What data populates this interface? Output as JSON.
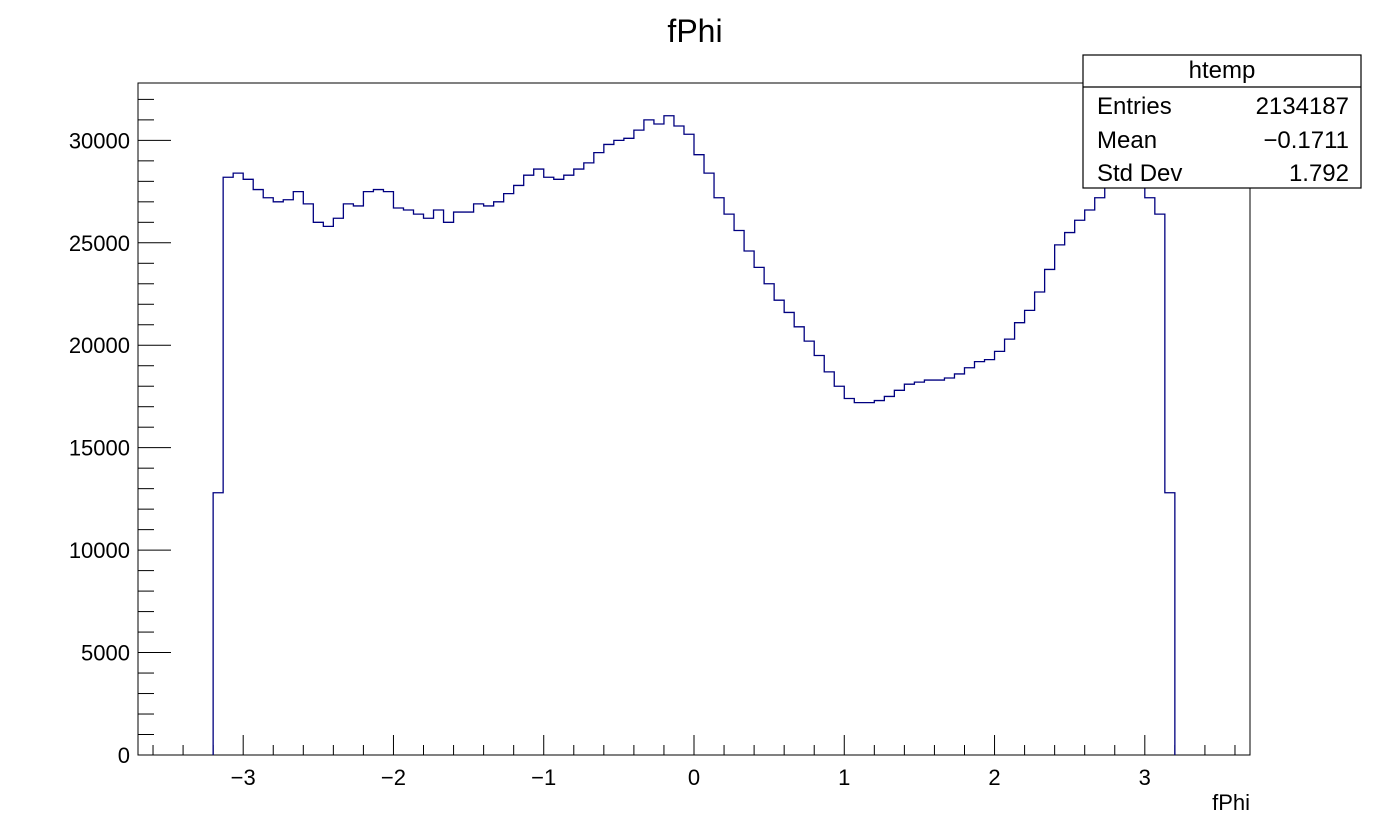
{
  "chart_data": {
    "type": "histogram",
    "title": "fPhi",
    "xlabel": "fPhi",
    "ylabel": "",
    "xlim": [
      -3.7,
      3.7
    ],
    "ylim": [
      0,
      32800
    ],
    "bin_edges": [
      -3.2,
      3.2
    ],
    "x_ticks": [
      -3,
      -2,
      -1,
      0,
      1,
      2,
      3
    ],
    "x_tick_labels": [
      "−3",
      "−2",
      "−1",
      "0",
      "1",
      "2",
      "3"
    ],
    "y_ticks": [
      0,
      5000,
      10000,
      15000,
      20000,
      25000,
      30000
    ],
    "y_tick_labels": [
      "0",
      "5000",
      "10000",
      "15000",
      "20000",
      "25000",
      "30000"
    ],
    "line_color": "#000080",
    "values": [
      12800,
      28200,
      28400,
      28100,
      27600,
      27200,
      27000,
      27100,
      27500,
      26900,
      26000,
      25800,
      26200,
      26900,
      26800,
      27500,
      27600,
      27500,
      26700,
      26600,
      26400,
      26200,
      26600,
      26000,
      26500,
      26500,
      26900,
      26800,
      27000,
      27400,
      27800,
      28300,
      28600,
      28200,
      28100,
      28300,
      28600,
      28900,
      29400,
      29800,
      30000,
      30100,
      30500,
      31000,
      30800,
      31200,
      30700,
      30300,
      29300,
      28400,
      27200,
      26400,
      25600,
      24600,
      23800,
      23000,
      22200,
      21600,
      20900,
      20200,
      19500,
      18700,
      18000,
      17400,
      17200,
      17200,
      17300,
      17500,
      17800,
      18100,
      18200,
      18300,
      18300,
      18400,
      18600,
      18900,
      19200,
      19300,
      19700,
      20300,
      21100,
      21700,
      22600,
      23700,
      24900,
      25500,
      26100,
      26600,
      27200,
      28100,
      28300,
      28400,
      27900,
      27200,
      26400,
      12800
    ]
  },
  "stats_box": {
    "name": "htemp",
    "rows": [
      {
        "label": "Entries",
        "value": "2134187"
      },
      {
        "label": "Mean",
        "value": "−0.1711"
      },
      {
        "label": "Std Dev",
        "value": "1.792"
      }
    ]
  }
}
